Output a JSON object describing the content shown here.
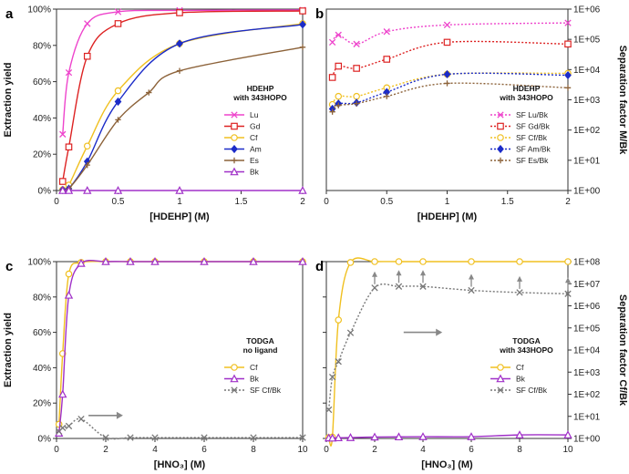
{
  "chart_data": [
    {
      "panel": "a",
      "type": "line",
      "xlabel": "[HDEHP] (M)",
      "ylabel": "Extraction yield",
      "xlim": [
        0,
        2
      ],
      "ylim": [
        0,
        100
      ],
      "yscale": "linear",
      "yaxis_side": "left",
      "xticks": [
        0,
        0.5,
        1,
        1.5,
        2
      ],
      "xtick_labels": [
        "0",
        "0.5",
        "1",
        "1.5",
        "2"
      ],
      "yticks": [
        0,
        20,
        40,
        60,
        80,
        100
      ],
      "ytick_labels": [
        "0%",
        "20%",
        "40%",
        "60%",
        "80%",
        "100%"
      ],
      "legend_title": [
        "HDEHP",
        "with 343HOPO"
      ],
      "series": [
        {
          "name": "Lu",
          "color": "#ee44cc",
          "marker": "x",
          "dash": "",
          "x": [
            0.05,
            0.1,
            0.25,
            0.5,
            1,
            2
          ],
          "y": [
            31,
            65,
            92,
            98.5,
            99.3,
            99.5
          ]
        },
        {
          "name": "Gd",
          "color": "#dd2222",
          "marker": "square",
          "dash": "",
          "x": [
            0.05,
            0.1,
            0.25,
            0.5,
            1,
            2
          ],
          "y": [
            5,
            24,
            74,
            92,
            98,
            99
          ]
        },
        {
          "name": "Cf",
          "color": "#f0c020",
          "marker": "circle",
          "dash": "",
          "x": [
            0.05,
            0.1,
            0.25,
            0.5,
            1,
            2
          ],
          "y": [
            0.5,
            3,
            24.5,
            55,
            81,
            92
          ]
        },
        {
          "name": "Am",
          "color": "#1c2cc8",
          "marker": "diamond",
          "dash": "",
          "x": [
            0.05,
            0.1,
            0.25,
            0.5,
            1,
            2
          ],
          "y": [
            0.3,
            1,
            16,
            49,
            81,
            91.5
          ]
        },
        {
          "name": "Es",
          "color": "#8c6239",
          "marker": "plus",
          "dash": "",
          "x": [
            0.05,
            0.1,
            0.25,
            0.5,
            0.75,
            1,
            2
          ],
          "y": [
            0.2,
            1,
            14,
            39,
            54,
            66,
            79
          ]
        },
        {
          "name": "Bk",
          "color": "#a030c8",
          "marker": "triangle",
          "dash": "",
          "x": [
            0.05,
            0.1,
            0.25,
            0.5,
            1,
            2
          ],
          "y": [
            0,
            0,
            0,
            0,
            0,
            0
          ]
        }
      ]
    },
    {
      "panel": "b",
      "type": "line",
      "xlabel": "[HDEHP] (M)",
      "ylabel": "Separation factor M/Bk",
      "xlim": [
        0,
        2
      ],
      "ylim": [
        1,
        1000000
      ],
      "yscale": "log",
      "yaxis_side": "right",
      "xticks": [
        0,
        0.5,
        1,
        1.5,
        2
      ],
      "xtick_labels": [
        "0",
        "0.5",
        "1",
        "1.5",
        "2"
      ],
      "yticks": [
        1,
        10,
        100,
        1000,
        10000,
        100000,
        1000000
      ],
      "ytick_labels": [
        "1E+00",
        "1E+01",
        "1E+02",
        "1E+03",
        "1E+04",
        "1E+05",
        "1E+06"
      ],
      "legend_title": [
        "HDEHP",
        "with 343HOPO"
      ],
      "series": [
        {
          "name": "SF Lu/Bk",
          "color": "#ee44cc",
          "marker": "x",
          "dash": "2,2",
          "x": [
            0.05,
            0.1,
            0.25,
            0.5,
            1,
            2
          ],
          "y": [
            80000,
            140000,
            70000,
            180000,
            300000,
            350000
          ]
        },
        {
          "name": "SF Gd/Bk",
          "color": "#dd2222",
          "marker": "square",
          "dash": "2,2",
          "x": [
            0.05,
            0.1,
            0.25,
            0.5,
            1,
            2
          ],
          "y": [
            5500,
            13000,
            11000,
            22000,
            80000,
            70000
          ]
        },
        {
          "name": "SF Cf/Bk",
          "color": "#f0c020",
          "marker": "circle",
          "dash": "2,2",
          "x": [
            0.05,
            0.1,
            0.25,
            0.5,
            1,
            2
          ],
          "y": [
            700,
            1300,
            1300,
            2500,
            7000,
            7500
          ]
        },
        {
          "name": "SF Am/Bk",
          "color": "#1c2cc8",
          "marker": "diamond",
          "dash": "2,2",
          "x": [
            0.05,
            0.1,
            0.25,
            0.5,
            1,
            2
          ],
          "y": [
            500,
            750,
            800,
            1800,
            7000,
            6500
          ]
        },
        {
          "name": "SF Es/Bk",
          "color": "#8c6239",
          "marker": "plus",
          "dash": "2,2",
          "x": [
            0.05,
            0.1,
            0.25,
            0.5,
            1,
            2
          ],
          "y": [
            400,
            650,
            750,
            1300,
            3500,
            2500
          ]
        }
      ]
    },
    {
      "panel": "c",
      "type": "line",
      "xlabel": "[HNO₃] (M)",
      "ylabel": "Extraction yield",
      "xlim": [
        0,
        10
      ],
      "ylim": [
        0,
        100
      ],
      "yscale": "linear",
      "yaxis_side": "left",
      "xticks": [
        0,
        2,
        4,
        6,
        8,
        10
      ],
      "xtick_labels": [
        "0",
        "2",
        "4",
        "6",
        "8",
        "10"
      ],
      "yticks": [
        0,
        20,
        40,
        60,
        80,
        100
      ],
      "ytick_labels": [
        "0%",
        "20%",
        "40%",
        "60%",
        "80%",
        "100%"
      ],
      "legend_title": [
        "TODGA",
        "no ligand"
      ],
      "series": [
        {
          "name": "Cf",
          "color": "#f0c020",
          "marker": "circle",
          "dash": "",
          "x": [
            0.1,
            0.25,
            0.5,
            1,
            2,
            3,
            4,
            6,
            8,
            10
          ],
          "y": [
            8,
            48,
            93,
            99.5,
            100,
            100,
            100,
            100,
            100,
            100
          ]
        },
        {
          "name": "Bk",
          "color": "#a030c8",
          "marker": "triangle",
          "dash": "",
          "x": [
            0.1,
            0.25,
            0.5,
            1,
            2,
            3,
            4,
            6,
            8,
            10
          ],
          "y": [
            3,
            25,
            81,
            99,
            100,
            100,
            100,
            100,
            100,
            100
          ]
        },
        {
          "name": "SF Cf/Bk",
          "color": "#777777",
          "marker": "x",
          "dash": "2,2",
          "x": [
            0.1,
            0.25,
            0.5,
            1,
            2,
            3,
            4,
            6,
            8,
            10
          ],
          "y": [
            4,
            6,
            7,
            11,
            0.5,
            0.5,
            0.5,
            0.5,
            0.5,
            0.5
          ]
        }
      ],
      "arrows": [
        {
          "x1": 1.3,
          "y1": 13,
          "x2": 2.7,
          "y2": 13,
          "color": "#888888"
        }
      ]
    },
    {
      "panel": "d",
      "type": "line",
      "xlabel": "[HNO₃] (M)",
      "ylabel": "Separation factor Cf/Bk",
      "xlim": [
        0,
        10
      ],
      "ylim": [
        0,
        100
      ],
      "y2lim": [
        1,
        100000000
      ],
      "yscale": "linear",
      "yaxis_side": "right",
      "xticks": [
        0,
        2,
        4,
        6,
        8,
        10
      ],
      "xtick_labels": [
        "0",
        "2",
        "4",
        "6",
        "8",
        "10"
      ],
      "yticks": [
        1,
        10,
        100,
        1000,
        10000,
        100000,
        1000000,
        10000000,
        100000000
      ],
      "ytick_labels": [
        "1E+00",
        "1E+01",
        "1E+02",
        "1E+03",
        "1E+04",
        "1E+05",
        "1E+06",
        "1E+07",
        "1E+08"
      ],
      "legend_title": [
        "TODGA",
        "with 343HOPO"
      ],
      "series": [
        {
          "name": "Cf",
          "color": "#f0c020",
          "marker": "circle",
          "dash": "",
          "axis": "left",
          "x": [
            0.1,
            0.25,
            0.5,
            1,
            2,
            3,
            4,
            6,
            8,
            10
          ],
          "y": [
            0.5,
            0.8,
            67,
            99.5,
            100,
            100,
            100,
            100,
            100,
            100
          ]
        },
        {
          "name": "Bk",
          "color": "#a030c8",
          "marker": "triangle",
          "dash": "",
          "axis": "left",
          "x": [
            0.1,
            0.25,
            0.5,
            1,
            2,
            3,
            4,
            6,
            8,
            10
          ],
          "y": [
            0.3,
            0.2,
            0.4,
            0.5,
            0.8,
            0.9,
            1,
            1,
            2,
            2
          ]
        },
        {
          "name": "SF Cf/Bk",
          "color": "#777777",
          "marker": "x",
          "dash": "2,2",
          "axis": "right",
          "x": [
            0.1,
            0.25,
            0.5,
            1,
            2,
            3,
            4,
            6,
            8,
            10
          ],
          "y": [
            20,
            600,
            3000,
            60000,
            6500000,
            7500000,
            7500000,
            5000000,
            4000000,
            3500000
          ]
        }
      ],
      "arrows": [
        {
          "x1": 3.2,
          "y1": 60,
          "x2": 4.8,
          "y2": 60,
          "color": "#888888"
        }
      ],
      "up_arrows_x": [
        2,
        3,
        4,
        6,
        8,
        10
      ]
    }
  ]
}
